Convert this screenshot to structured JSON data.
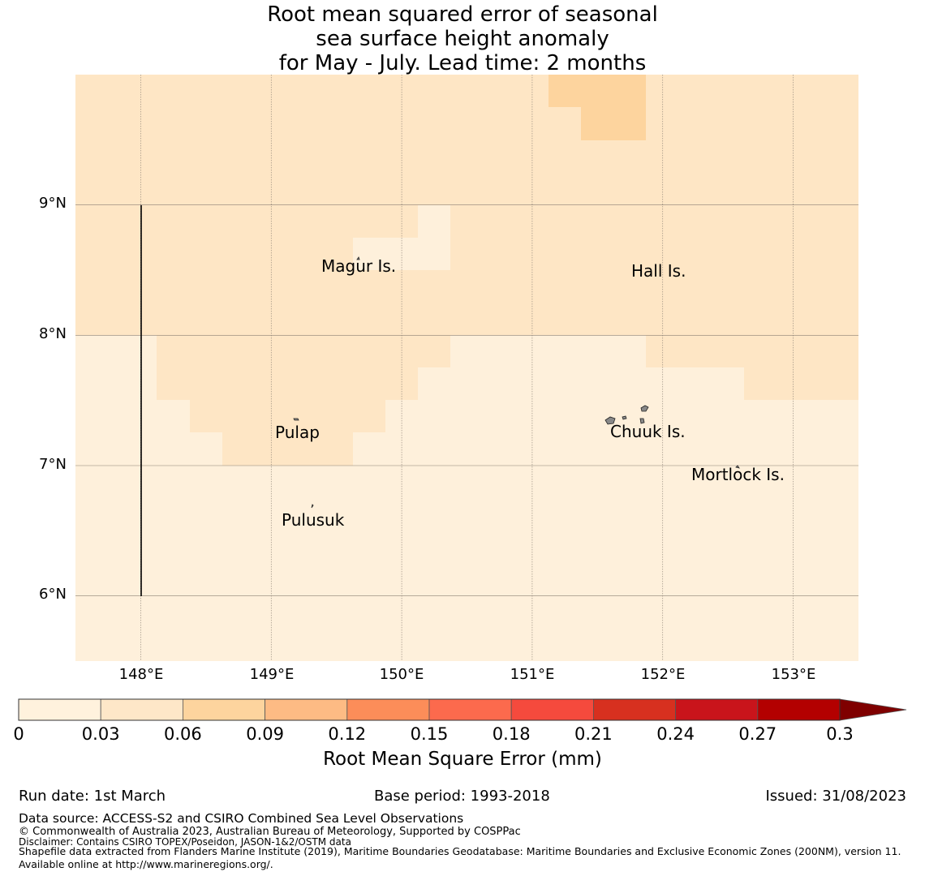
{
  "title": {
    "line1": "Root mean squared error of seasonal",
    "line2": "sea surface height anomaly",
    "line3": "for May - July. Lead time: 2 months"
  },
  "map": {
    "lat_labels": [
      "9°N",
      "8°N",
      "7°N",
      "6°N"
    ],
    "lon_labels": [
      "148°E",
      "149°E",
      "150°E",
      "151°E",
      "152°E",
      "153°E"
    ],
    "bounds": {
      "lon_min": 147.5,
      "lon_max": 153.5,
      "lat_min": 5.5,
      "lat_max": 10.0
    },
    "places": [
      {
        "name": "Magur Is.",
        "lon": 149.65,
        "lat": 8.62
      },
      {
        "name": "Hall Is.",
        "lon": 151.98,
        "lat": 8.58
      },
      {
        "name": "Pulap",
        "lon": 149.18,
        "lat": 7.37
      },
      {
        "name": "Chuuk Is.",
        "lon": 151.85,
        "lat": 7.4
      },
      {
        "name": "Mortlock Is.",
        "lon": 152.58,
        "lat": 7.02
      },
      {
        "name": "Pulusuk",
        "lon": 149.3,
        "lat": 6.68
      }
    ],
    "cell_colors": {
      "c0": "#fef0db",
      "c1": "#fee6c5",
      "c2": "#fdd49e"
    }
  },
  "colorbar": {
    "ticks": [
      "0",
      "0.03",
      "0.06",
      "0.09",
      "0.12",
      "0.15",
      "0.18",
      "0.21",
      "0.24",
      "0.27",
      "0.3"
    ],
    "colors": [
      "#fff2dd",
      "#fee7c8",
      "#fdd49e",
      "#fdbb84",
      "#fc8d59",
      "#fc6a4d",
      "#f54a3d",
      "#d7301f",
      "#c9141b",
      "#b30000"
    ],
    "extend_color": "#7f0000",
    "label": "Root Mean Square Error (mm)"
  },
  "footer": {
    "run_date": "Run date: 1st March",
    "base_period": "Base period: 1993-2018",
    "issued": "Issued: 31/08/2023",
    "data_source": "Data source: ACCESS-S2 and CSIRO Combined Sea Level Observations",
    "copyright": "© Commonwealth of Australia 2023, Australian Bureau of Meteorology, Supported by COSPPac",
    "disclaimer": "Disclaimer: Contains CSIRO TOPEX/Poseidon, JASON-1&2/OSTM data",
    "shapefile": "Shapefile data extracted from Flanders Marine Institute (2019), Maritime Boundaries Geodatabase: Maritime Boundaries and Exclusive Economic Zones (200NM), version 11. Available online at http://www.marineregions.org/."
  }
}
